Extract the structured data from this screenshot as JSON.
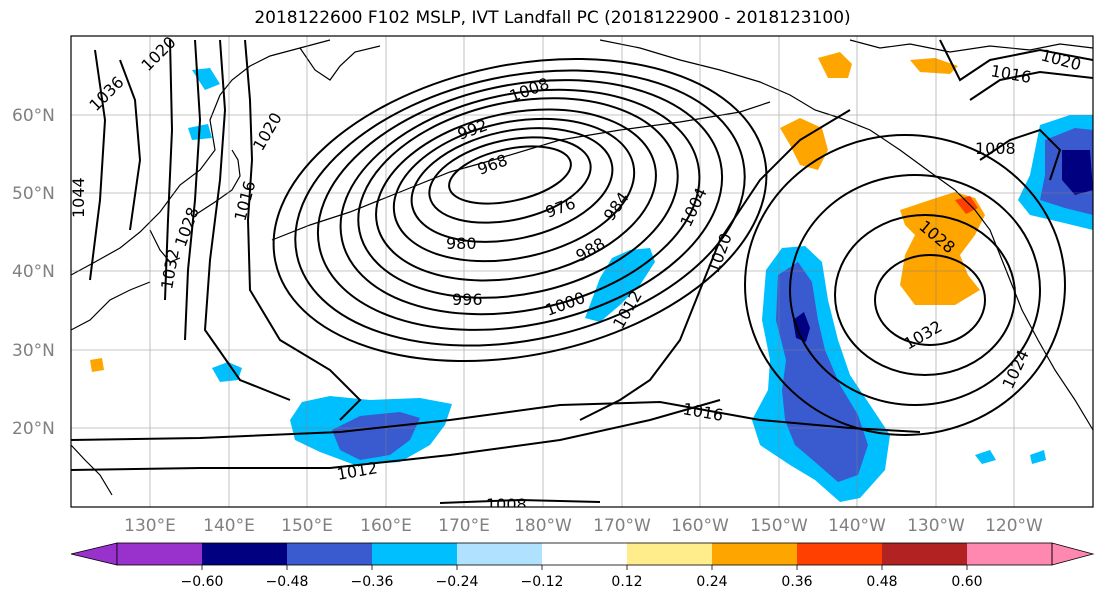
{
  "title": "2018122600 F102 MSLP, IVT Landfall PC (2018122900 - 2018123100)",
  "lat_labels": [
    "60°N",
    "50°N",
    "40°N",
    "30°N",
    "20°N"
  ],
  "lon_labels": [
    "130°E",
    "140°E",
    "150°E",
    "160°E",
    "170°E",
    "180°W",
    "170°W",
    "160°W",
    "150°W",
    "140°W",
    "130°W",
    "120°W"
  ],
  "isobar_labels": [
    "968",
    "976",
    "980",
    "984",
    "988",
    "992",
    "996",
    "1000",
    "1004",
    "1008",
    "1008",
    "1008",
    "1012",
    "1012",
    "1016",
    "1016",
    "1016",
    "1020",
    "1020",
    "1020",
    "1024",
    "1028",
    "1028",
    "1032",
    "1032",
    "1036",
    "1020",
    "1044"
  ],
  "colorbar": {
    "colors": [
      "#9932cc",
      "#000080",
      "#3a5bd0",
      "#00bfff",
      "#b0e2ff",
      "#ffffff",
      "#ffec8b",
      "#ffa500",
      "#ff4000",
      "#b22222",
      "#ff88b0"
    ],
    "tick_labels": [
      "−0.60",
      "−0.48",
      "−0.36",
      "−0.24",
      "−0.12",
      "0.12",
      "0.24",
      "0.36",
      "0.48",
      "0.60"
    ]
  },
  "shading_colors": {
    "blue_light": "#00bfff",
    "blue_mid": "#3a5bd0",
    "blue_dark": "#000080",
    "orange": "#ffa500",
    "red": "#ff4000"
  }
}
